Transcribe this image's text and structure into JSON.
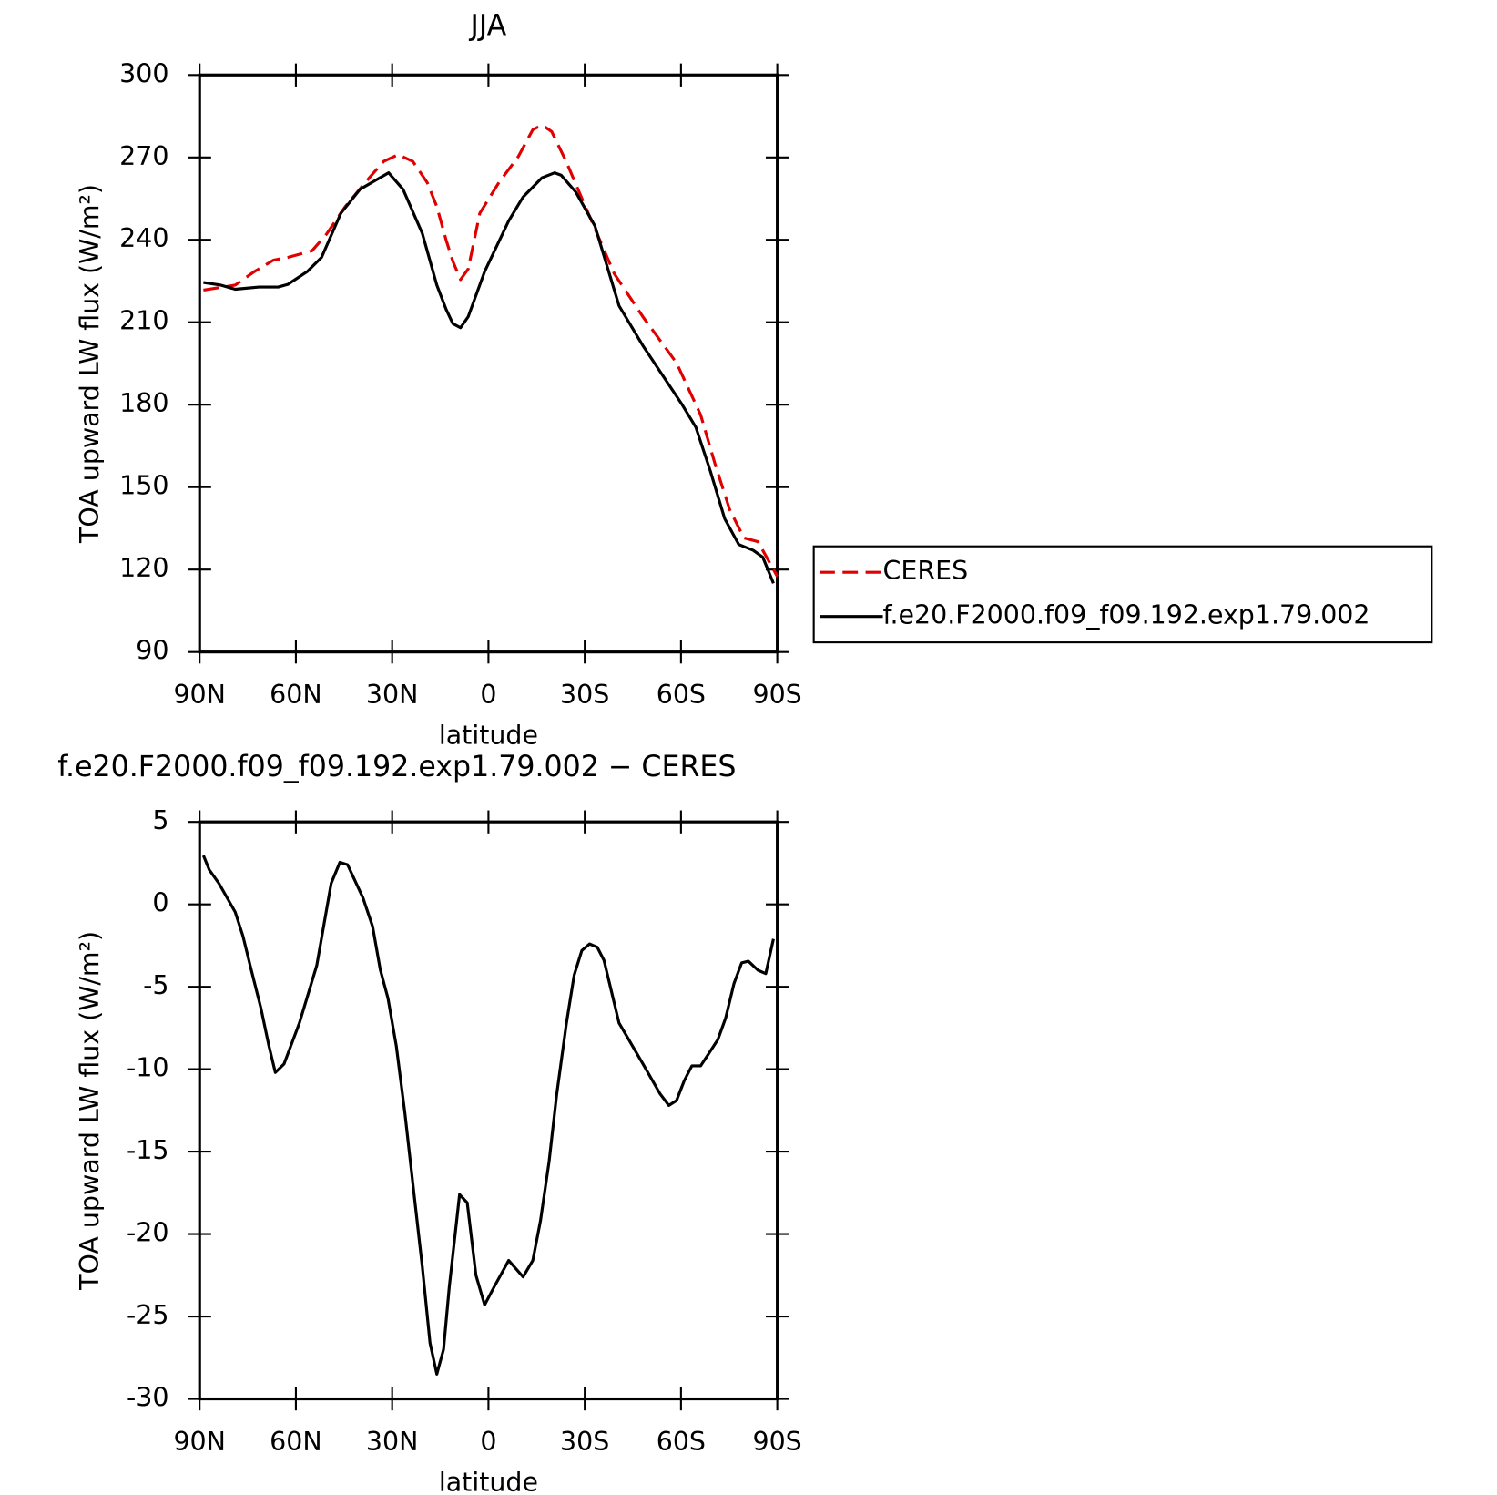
{
  "chart_data": [
    {
      "type": "line",
      "title": "JJA",
      "x_label": "latitude",
      "y_label": "TOA upward LW flux (W/m²)",
      "xlim": [
        90,
        -90
      ],
      "xticks": [
        {
          "value": 90,
          "label": "90N"
        },
        {
          "value": 60,
          "label": "60N"
        },
        {
          "value": 30,
          "label": "30N"
        },
        0,
        {
          "value": -30,
          "label": "30S"
        },
        {
          "value": -60,
          "label": "60S"
        },
        {
          "value": -90,
          "label": "90S"
        }
      ],
      "ylim": [
        90,
        300
      ],
      "yticks": [
        90,
        120,
        150,
        180,
        210,
        240,
        270,
        300
      ],
      "legend": "outside right",
      "series": [
        {
          "name": "CERES",
          "color": "#e00000",
          "style": "dashed",
          "x": [
            88.8,
            78.9,
            73,
            67,
            62.5,
            55,
            50.5,
            44.6,
            37.1,
            32.6,
            28.1,
            23.6,
            19.1,
            16.1,
            13.2,
            11.1,
            8.7,
            6.3,
            2.7,
            -3.3,
            -9.3,
            -13.8,
            -16.7,
            -19.7,
            -24.2,
            -30.2,
            -39.2,
            -48.1,
            -58.6,
            -66.1,
            -70.6,
            -75.1,
            -79.6,
            -84,
            -90
          ],
          "values": [
            221.7,
            223.5,
            228.4,
            232.6,
            233.6,
            236,
            242,
            252.1,
            262.6,
            268.6,
            271,
            268.6,
            260.9,
            252.1,
            239.9,
            232.2,
            225.5,
            229.4,
            249.7,
            260.9,
            270.3,
            280.1,
            281.8,
            279.4,
            268.6,
            252.1,
            227.7,
            212,
            195.2,
            176.3,
            158.5,
            142,
            131.5,
            130.1,
            117.5
          ]
        },
        {
          "name": "f.e20.F2000.f09_f09.192.exp1.79.002",
          "color": "#000000",
          "style": "solid",
          "x": [
            88.8,
            83.4,
            78.9,
            71.5,
            65.5,
            62.5,
            56.5,
            52,
            46,
            40,
            31.1,
            26.6,
            20.6,
            16.1,
            13.2,
            11.1,
            8.7,
            6.3,
            1.2,
            -6.3,
            -10.8,
            -16.7,
            -20.6,
            -22.7,
            -27.2,
            -33.2,
            -40.7,
            -48.1,
            -57.1,
            -60.1,
            -64.6,
            -69.1,
            -73.6,
            -78,
            -82.5,
            -85.5,
            -88.8
          ],
          "values": [
            224.5,
            223.5,
            222,
            222.8,
            222.8,
            223.8,
            228.4,
            233.6,
            249.7,
            258.4,
            264.4,
            258.4,
            242.3,
            223.5,
            214.7,
            209.5,
            208,
            212,
            228.4,
            246.9,
            255.6,
            262.6,
            264.4,
            263.5,
            257.4,
            245,
            216,
            201.5,
            185.7,
            180.5,
            171.8,
            156,
            138.5,
            129.1,
            127,
            124.5,
            115
          ]
        }
      ]
    },
    {
      "type": "line",
      "title": "f.e20.F2000.f09_f09.192.exp1.79.002 − CERES",
      "x_label": "latitude",
      "y_label": "TOA upward LW flux (W/m²)",
      "xlim": [
        90,
        -90
      ],
      "xticks": [
        {
          "value": 90,
          "label": "90N"
        },
        {
          "value": 60,
          "label": "60N"
        },
        {
          "value": 30,
          "label": "30N"
        },
        0,
        {
          "value": -30,
          "label": "30S"
        },
        {
          "value": -60,
          "label": "60S"
        },
        {
          "value": -90,
          "label": "90S"
        }
      ],
      "ylim": [
        -30,
        5
      ],
      "yticks": [
        5,
        0,
        -5,
        -10,
        -15,
        -20,
        -25,
        -30
      ],
      "series": [
        {
          "color": "#000000",
          "style": "solid",
          "x": [
            88.8,
            87,
            84,
            78.9,
            76.5,
            73.9,
            70.9,
            68.5,
            66.4,
            63.7,
            58.9,
            53.5,
            49,
            46.3,
            43.9,
            39.1,
            36.1,
            33.7,
            31.3,
            28.7,
            26,
            23,
            20.6,
            18.2,
            16.1,
            14,
            12.2,
            9,
            6.6,
            3.9,
            1.2,
            -1.8,
            -6.3,
            -10.8,
            -13.8,
            -16.2,
            -18.9,
            -21.3,
            -24.3,
            -26.7,
            -29.1,
            -31.5,
            -33.9,
            -36,
            -40.7,
            -43.7,
            -48.2,
            -53.5,
            -56.2,
            -58.6,
            -61,
            -63.4,
            -66.1,
            -68.5,
            -71.5,
            -73.9,
            -76.5,
            -78.9,
            -81,
            -84,
            -86.4,
            -88.8
          ],
          "values": [
            2.96,
            2.1,
            1.27,
            -0.47,
            -1.93,
            -3.97,
            -6.3,
            -8.5,
            -10.2,
            -9.68,
            -7.2,
            -3.7,
            1.27,
            2.55,
            2.4,
            0.4,
            -1.35,
            -3.97,
            -5.7,
            -8.6,
            -12.7,
            -17.9,
            -22,
            -26.6,
            -28.5,
            -27,
            -23.2,
            -17.6,
            -18.1,
            -22.5,
            -24.3,
            -23.2,
            -21.6,
            -22.6,
            -21.6,
            -19.2,
            -15.6,
            -11.5,
            -7.2,
            -4.3,
            -2.8,
            -2.4,
            -2.6,
            -3.4,
            -7.2,
            -8.2,
            -9.7,
            -11.5,
            -12.2,
            -11.9,
            -10.7,
            -9.8,
            -9.8,
            -9.1,
            -8.2,
            -6.9,
            -4.8,
            -3.55,
            -3.45,
            -4,
            -4.2,
            -2.1
          ]
        }
      ]
    }
  ]
}
